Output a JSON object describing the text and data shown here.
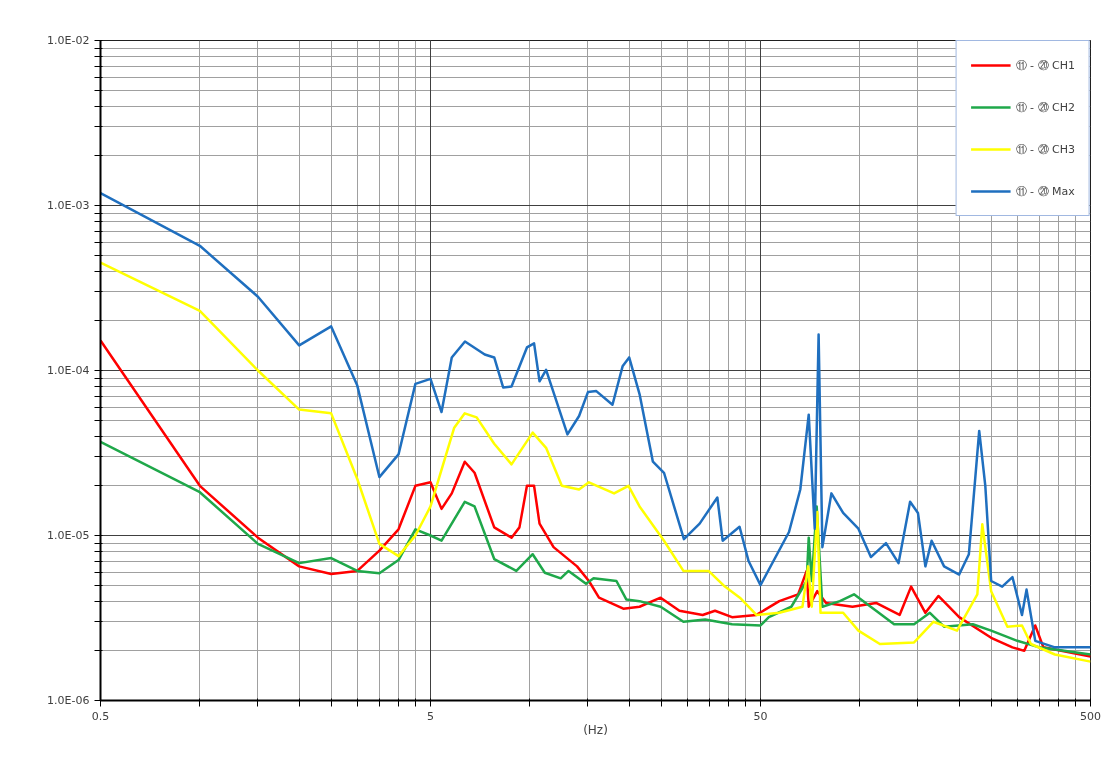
{
  "chart_data": {
    "type": "line",
    "xlabel": "(Hz)",
    "log": "xy",
    "grid": true,
    "legend": "top right",
    "marker": "none",
    "line_style": "solid",
    "xlim": [
      0.5,
      500
    ],
    "ylim": [
      1e-06,
      0.01
    ],
    "xticks": [
      0.5,
      {
        "value": 1,
        "label": null
      },
      {
        "value": 1.5,
        "label": null
      },
      {
        "value": 2,
        "label": null
      },
      {
        "value": 2.5,
        "label": null
      },
      {
        "value": 3,
        "label": null
      },
      {
        "value": 3.5,
        "label": null
      },
      {
        "value": 4,
        "label": null
      },
      {
        "value": 4.5,
        "label": null
      },
      5,
      {
        "value": 10,
        "label": null
      },
      {
        "value": 15,
        "label": null
      },
      {
        "value": 20,
        "label": null
      },
      {
        "value": 25,
        "label": null
      },
      {
        "value": 30,
        "label": null
      },
      {
        "value": 35,
        "label": null
      },
      {
        "value": 40,
        "label": null
      },
      {
        "value": 45,
        "label": null
      },
      50,
      {
        "value": 100,
        "label": null
      },
      {
        "value": 150,
        "label": null
      },
      {
        "value": 200,
        "label": null
      },
      {
        "value": 250,
        "label": null
      },
      {
        "value": 300,
        "label": null
      },
      {
        "value": 350,
        "label": null
      },
      {
        "value": 400,
        "label": null
      },
      {
        "value": 450,
        "label": null
      },
      500
    ],
    "yticks": [
      {
        "value": 1e-06,
        "label": "1.0E-06"
      },
      {
        "value": 2e-06,
        "label": null
      },
      {
        "value": 3e-06,
        "label": null
      },
      {
        "value": 4e-06,
        "label": null
      },
      {
        "value": 5e-06,
        "label": null
      },
      {
        "value": 6e-06,
        "label": null
      },
      {
        "value": 7e-06,
        "label": null
      },
      {
        "value": 8e-06,
        "label": null
      },
      {
        "value": 9e-06,
        "label": null
      },
      {
        "value": 1e-05,
        "label": "1.0E-05"
      },
      {
        "value": 2e-05,
        "label": null
      },
      {
        "value": 3e-05,
        "label": null
      },
      {
        "value": 4e-05,
        "label": null
      },
      {
        "value": 5e-05,
        "label": null
      },
      {
        "value": 6e-05,
        "label": null
      },
      {
        "value": 7e-05,
        "label": null
      },
      {
        "value": 8e-05,
        "label": null
      },
      {
        "value": 9e-05,
        "label": null
      },
      {
        "value": 0.0001,
        "label": "1.0E-04"
      },
      {
        "value": 0.0002,
        "label": null
      },
      {
        "value": 0.0003,
        "label": null
      },
      {
        "value": 0.0004,
        "label": null
      },
      {
        "value": 0.0005,
        "label": null
      },
      {
        "value": 0.0006,
        "label": null
      },
      {
        "value": 0.0007,
        "label": null
      },
      {
        "value": 0.0008,
        "label": null
      },
      {
        "value": 0.0009,
        "label": null
      },
      {
        "value": 0.001,
        "label": "1.0E-03"
      },
      {
        "value": 0.002,
        "label": null
      },
      {
        "value": 0.003,
        "label": null
      },
      {
        "value": 0.004,
        "label": null
      },
      {
        "value": 0.005,
        "label": null
      },
      {
        "value": 0.006,
        "label": null
      },
      {
        "value": 0.007,
        "label": null
      },
      {
        "value": 0.008,
        "label": null
      },
      {
        "value": 0.009,
        "label": null
      },
      {
        "value": 0.01,
        "label": "1.0E-02"
      }
    ],
    "series": [
      {
        "name": "⑪ - ⑳ CH1",
        "color": "#ff0000",
        "x": [
          0.5,
          1,
          1.5,
          2,
          2.5,
          3,
          3.5,
          4,
          4.5,
          5,
          5.4,
          5.8,
          6.35,
          6.8,
          7.8,
          8.8,
          9.3,
          9.8,
          10.3,
          10.7,
          11.8,
          13.9,
          15.1,
          16.2,
          19.2,
          21.5,
          24.9,
          28.4,
          33.4,
          36.4,
          41,
          48.6,
          57,
          65,
          69,
          70,
          74.3,
          79,
          95,
          112,
          132,
          143,
          158,
          173,
          200,
          250,
          290,
          315,
          340,
          360,
          500
        ],
        "values": [
          0.000152,
          2e-05,
          9.7e-06,
          6.5e-06,
          5.85e-06,
          6.1e-06,
          8.1e-06,
          1.09e-05,
          2e-05,
          2.1e-05,
          1.45e-05,
          1.8e-05,
          2.8e-05,
          2.4e-05,
          1.12e-05,
          9.7e-06,
          1.12e-05,
          2e-05,
          2e-05,
          1.18e-05,
          8.5e-06,
          6.5e-06,
          5.3e-06,
          4.2e-06,
          3.6e-06,
          3.7e-06,
          4.2e-06,
          3.5e-06,
          3.3e-06,
          3.5e-06,
          3.2e-06,
          3.3e-06,
          4e-06,
          4.4e-06,
          6.1e-06,
          3.7e-06,
          4.6e-06,
          3.9e-06,
          3.7e-06,
          3.9e-06,
          3.3e-06,
          4.9e-06,
          3.4e-06,
          4.3e-06,
          3.2e-06,
          2.4e-06,
          2.1e-06,
          2e-06,
          2.85e-06,
          2.1e-06,
          1.85e-06
        ]
      },
      {
        "name": "⑪ - ⑳ CH2",
        "color": "#1fa84a",
        "x": [
          0.5,
          1,
          1.5,
          2,
          2.5,
          3,
          3.5,
          4,
          4.5,
          5,
          5.4,
          6.35,
          6.8,
          7.8,
          9.1,
          10.2,
          11.1,
          12.4,
          13.1,
          14.8,
          15.6,
          18.3,
          19.6,
          21.5,
          24.9,
          29.2,
          34,
          41,
          50,
          53,
          62,
          69,
          70,
          71.5,
          74,
          77,
          87,
          96,
          112,
          127,
          146,
          163,
          180,
          220,
          250,
          300,
          350,
          500
        ],
        "values": [
          3.7e-05,
          1.83e-05,
          8.9e-06,
          6.8e-06,
          7.3e-06,
          6.1e-06,
          5.9e-06,
          7.1e-06,
          1.09e-05,
          1e-05,
          9.3e-06,
          1.6e-05,
          1.5e-05,
          7.2e-06,
          6.1e-06,
          7.7e-06,
          5.95e-06,
          5.5e-06,
          6.1e-06,
          5.1e-06,
          5.5e-06,
          5.3e-06,
          4.1e-06,
          4e-06,
          3.7e-06,
          3e-06,
          3.1e-06,
          2.9e-06,
          2.85e-06,
          3.2e-06,
          3.7e-06,
          5.3e-06,
          9.7e-06,
          5.3e-06,
          1.5e-05,
          3.7e-06,
          4e-06,
          4.4e-06,
          3.5e-06,
          2.9e-06,
          2.9e-06,
          3.4e-06,
          2.8e-06,
          2.9e-06,
          2.65e-06,
          2.3e-06,
          2.1e-06,
          1.9e-06
        ]
      },
      {
        "name": "⑪ - ⑳ CH3",
        "color": "#ffff00",
        "x": [
          0.5,
          1,
          1.5,
          2,
          2.5,
          3,
          3.5,
          4,
          4.5,
          5,
          5.9,
          6.35,
          6.9,
          7.8,
          8.8,
          10.2,
          11.2,
          12.5,
          14.1,
          15.1,
          18,
          19.9,
          21.5,
          25.5,
          29.2,
          34.8,
          39,
          43.3,
          48.6,
          57,
          67,
          69.7,
          71.5,
          74.3,
          76,
          89,
          99,
          115,
          146,
          167,
          197,
          227,
          235,
          250,
          280,
          310,
          330,
          390,
          500
        ],
        "values": [
          0.00045,
          0.00023,
          0.0001,
          5.8e-05,
          5.5e-05,
          2.2e-05,
          8.9e-06,
          7.5e-06,
          1e-05,
          1.5e-05,
          4.5e-05,
          5.5e-05,
          5.2e-05,
          3.6e-05,
          2.7e-05,
          4.2e-05,
          3.4e-05,
          2e-05,
          1.9e-05,
          2.1e-05,
          1.8e-05,
          2e-05,
          1.5e-05,
          9.3e-06,
          6.1e-06,
          6.1e-06,
          4.9e-06,
          4.2e-06,
          3.3e-06,
          3.4e-06,
          3.7e-06,
          6.5e-06,
          3.7e-06,
          1.39e-05,
          3.4e-06,
          3.4e-06,
          2.65e-06,
          2.2e-06,
          2.25e-06,
          3e-06,
          2.65e-06,
          4.4e-06,
          1.17e-05,
          4.6e-06,
          2.8e-06,
          2.85e-06,
          2.2e-06,
          1.9e-06,
          1.72e-06
        ]
      },
      {
        "name": "⑪ - ⑳ Max",
        "color": "#1f6fbf",
        "x": [
          0.5,
          1,
          1.5,
          2,
          2.5,
          3,
          3.5,
          4,
          4.5,
          5,
          5.4,
          5.8,
          6.36,
          7.3,
          7.8,
          8.3,
          8.8,
          9.8,
          10.3,
          10.7,
          11.2,
          13,
          14.1,
          15,
          15.9,
          17.8,
          19.1,
          20,
          21.5,
          23.6,
          25.5,
          29.3,
          32.7,
          37,
          38.4,
          43.2,
          46,
          50,
          61,
          66,
          70,
          73,
          75,
          77,
          82,
          89,
          99,
          108,
          120,
          131,
          142,
          150,
          158,
          165,
          180,
          200,
          214,
          230,
          240,
          250,
          270,
          290,
          310,
          320,
          340,
          390,
          500
        ],
        "values": [
          0.00119,
          0.00057,
          0.00028,
          0.000142,
          0.000185,
          8.1e-05,
          2.26e-05,
          3.1e-05,
          8.3e-05,
          8.9e-05,
          5.6e-05,
          0.00012,
          0.00015,
          0.000125,
          0.00012,
          7.9e-05,
          8e-05,
          0.000138,
          0.000146,
          8.6e-05,
          0.000101,
          4.1e-05,
          5.3e-05,
          7.4e-05,
          7.5e-05,
          6.2e-05,
          0.000106,
          0.00012,
          7.2e-05,
          2.8e-05,
          2.4e-05,
          9.5e-06,
          1.18e-05,
          1.7e-05,
          9.3e-06,
          1.13e-05,
          7e-06,
          5e-06,
          1.05e-05,
          1.9e-05,
          5.4e-05,
          1.1e-05,
          0.000165,
          8.5e-06,
          1.8e-05,
          1.37e-05,
          1.1e-05,
          7.4e-06,
          9e-06,
          6.8e-06,
          1.6e-05,
          1.37e-05,
          6.5e-06,
          9.3e-06,
          6.5e-06,
          5.8e-06,
          7.7e-06,
          4.3e-05,
          2e-05,
          5.3e-06,
          4.9e-06,
          5.6e-06,
          3.3e-06,
          4.7e-06,
          2.3e-06,
          2.1e-06,
          2.1e-06
        ]
      }
    ]
  }
}
